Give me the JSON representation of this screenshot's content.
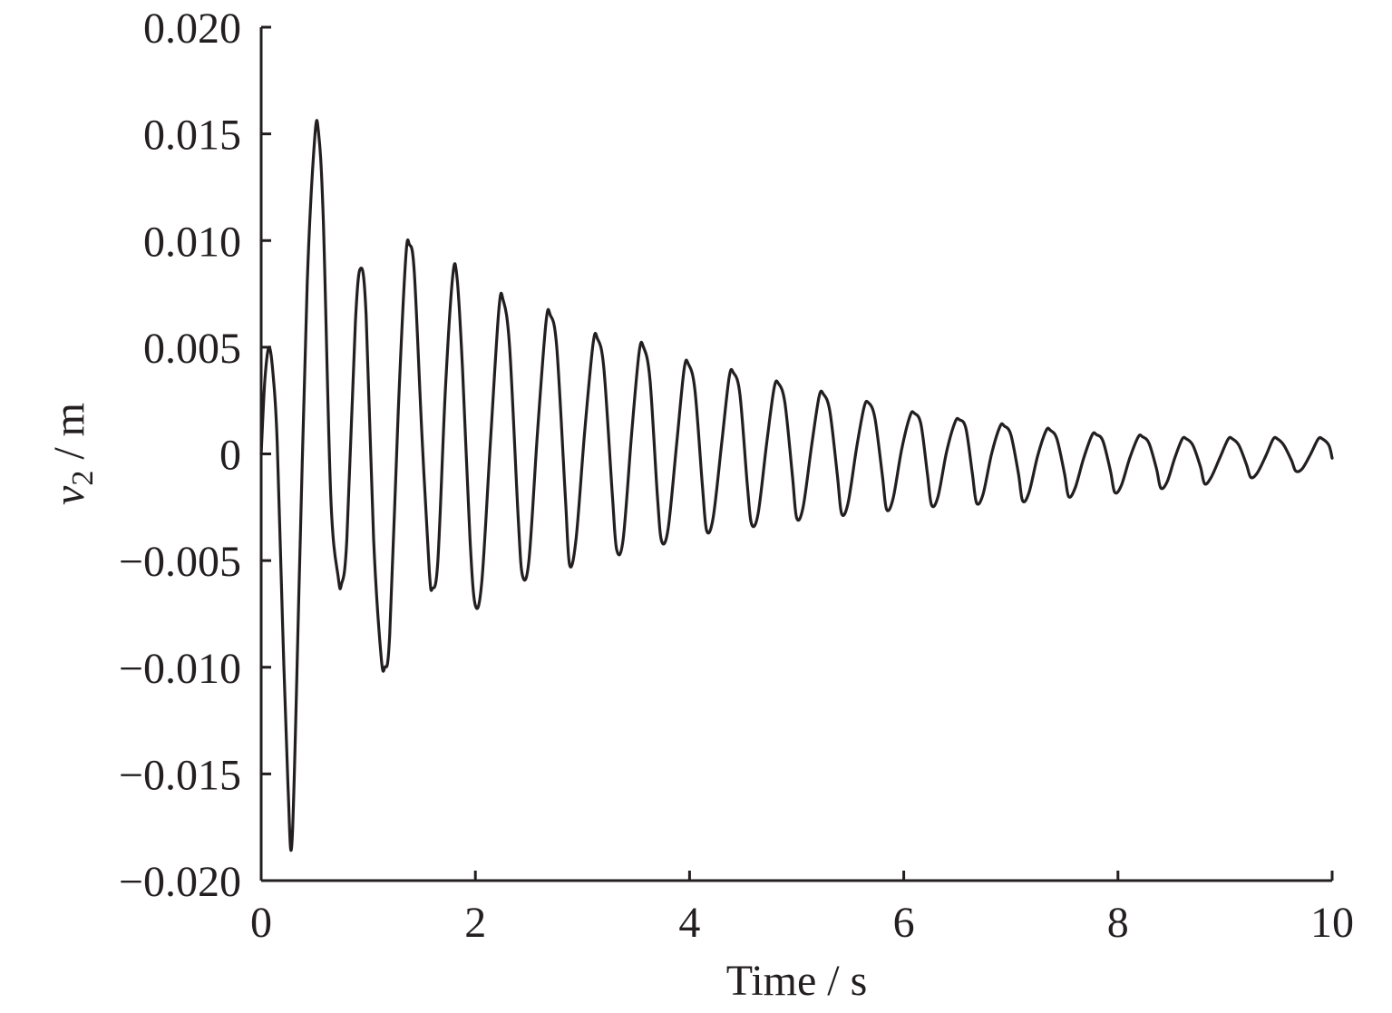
{
  "chart_data": {
    "type": "line",
    "title": "",
    "xlabel": "Time / s",
    "ylabel": {
      "var": "v",
      "sub": "2",
      "unit": " / m"
    },
    "xlim": [
      0,
      10
    ],
    "ylim": [
      -0.02,
      0.02
    ],
    "x_ticks": [
      0,
      2,
      4,
      6,
      8,
      10
    ],
    "x_tick_labels": [
      "0",
      "2",
      "4",
      "6",
      "8",
      "10"
    ],
    "y_ticks": [
      0.02,
      0.015,
      0.01,
      0.005,
      0,
      -0.005,
      -0.01,
      -0.015,
      -0.02
    ],
    "y_tick_labels": [
      "0.020",
      "0.015",
      "0.010",
      "0.005",
      "0",
      "−0.005",
      "−0.010",
      "−0.015",
      "−0.020"
    ],
    "grid": false,
    "legend": "none",
    "colors": {
      "line": "#231f20",
      "axis": "#231f20"
    },
    "series": [
      {
        "x": [
          0,
          0.035,
          0.075,
          0.115,
          0.15,
          0.2,
          0.25,
          0.29,
          0.36,
          0.43,
          0.5,
          0.535,
          0.58,
          0.65,
          0.72,
          0.75,
          0.8,
          0.88,
          0.93,
          0.98,
          1.05,
          1.12,
          1.155,
          1.2,
          1.28,
          1.35,
          1.385,
          1.43,
          1.5,
          1.57,
          1.6,
          1.65,
          1.72,
          1.79,
          1.83,
          1.88,
          1.95,
          2.0,
          2.06,
          2.14,
          2.22,
          2.26,
          2.32,
          2.4,
          2.44,
          2.5,
          2.58,
          2.66,
          2.7,
          2.76,
          2.84,
          2.88,
          2.94,
          3.02,
          3.1,
          3.14,
          3.2,
          3.28,
          3.32,
          3.38,
          3.46,
          3.53,
          3.57,
          3.63,
          3.7,
          3.74,
          3.8,
          3.88,
          3.95,
          3.99,
          4.05,
          4.12,
          4.16,
          4.22,
          4.3,
          4.37,
          4.41,
          4.47,
          4.54,
          4.58,
          4.64,
          4.72,
          4.79,
          4.83,
          4.89,
          4.96,
          5.0,
          5.06,
          5.14,
          5.21,
          5.25,
          5.31,
          5.38,
          5.42,
          5.48,
          5.56,
          5.63,
          5.67,
          5.73,
          5.8,
          5.84,
          5.9,
          5.98,
          6.06,
          6.1,
          6.16,
          6.22,
          6.26,
          6.32,
          6.4,
          6.48,
          6.52,
          6.58,
          6.64,
          6.68,
          6.74,
          6.82,
          6.9,
          6.94,
          7.0,
          7.07,
          7.11,
          7.17,
          7.25,
          7.33,
          7.37,
          7.43,
          7.5,
          7.54,
          7.6,
          7.68,
          7.76,
          7.8,
          7.86,
          7.93,
          7.97,
          8.03,
          8.11,
          8.19,
          8.23,
          8.29,
          8.36,
          8.4,
          8.46,
          8.53,
          8.6,
          8.64,
          8.7,
          8.77,
          8.81,
          8.87,
          8.95,
          9.03,
          9.07,
          9.13,
          9.2,
          9.24,
          9.3,
          9.38,
          9.45,
          9.49,
          9.55,
          9.62,
          9.66,
          9.72,
          9.8,
          9.87,
          9.91,
          9.97,
          10.0
        ],
        "values": [
          0,
          0.0035,
          0.005,
          0.0035,
          0.0005,
          -0.008,
          -0.0155,
          -0.018,
          -0.005,
          0.008,
          0.0148,
          0.0151,
          0.011,
          -0.002,
          -0.0058,
          -0.0061,
          -0.004,
          0.0062,
          0.0087,
          0.0065,
          -0.004,
          -0.0095,
          -0.01,
          -0.0085,
          0.002,
          0.0092,
          0.0098,
          0.0085,
          0.001,
          -0.0055,
          -0.0063,
          -0.005,
          0.003,
          0.0084,
          0.0082,
          0.004,
          -0.004,
          -0.0071,
          -0.006,
          0.0005,
          0.0068,
          0.0072,
          0.005,
          -0.003,
          -0.0057,
          -0.005,
          0.001,
          0.0062,
          0.0065,
          0.005,
          -0.002,
          -0.0052,
          -0.004,
          0.001,
          0.0052,
          0.0054,
          0.004,
          -0.002,
          -0.0045,
          -0.004,
          0.001,
          0.0048,
          0.005,
          0.0035,
          -0.002,
          -0.0041,
          -0.0035,
          0.0005,
          0.004,
          0.0042,
          0.003,
          -0.0015,
          -0.0036,
          -0.003,
          0.0005,
          0.0036,
          0.0038,
          0.0028,
          -0.0015,
          -0.0033,
          -0.0028,
          0.0005,
          0.0031,
          0.0033,
          0.0024,
          -0.001,
          -0.003,
          -0.0025,
          0.0004,
          0.0027,
          0.0028,
          0.002,
          -0.001,
          -0.0028,
          -0.0023,
          0.0003,
          0.0022,
          0.0024,
          0.0017,
          -0.001,
          -0.0026,
          -0.0021,
          0.0002,
          0.0018,
          0.0019,
          0.0014,
          -0.0009,
          -0.0024,
          -0.002,
          0.0001,
          0.0015,
          0.0016,
          0.0012,
          -0.0009,
          -0.0023,
          -0.0019,
          0.0,
          0.0013,
          0.0013,
          0.0009,
          -0.0009,
          -0.0022,
          -0.0018,
          -0.0001,
          0.0011,
          0.0011,
          0.0007,
          -0.0009,
          -0.002,
          -0.0016,
          -0.0002,
          0.0009,
          0.0009,
          0.0006,
          -0.0008,
          -0.0018,
          -0.0015,
          -0.0002,
          0.0008,
          0.0008,
          0.0005,
          -0.0007,
          -0.0016,
          -0.0013,
          -0.0002,
          0.0007,
          0.0007,
          0.0004,
          -0.0006,
          -0.0014,
          -0.0011,
          -0.0002,
          0.0007,
          0.0007,
          0.0004,
          -0.0005,
          -0.0011,
          -0.0009,
          -0.0001,
          0.0007,
          0.0007,
          0.0004,
          -0.0003,
          -0.0008,
          -0.0007,
          0.0,
          0.0007,
          0.0007,
          0.0004,
          -0.0002
        ]
      }
    ]
  }
}
